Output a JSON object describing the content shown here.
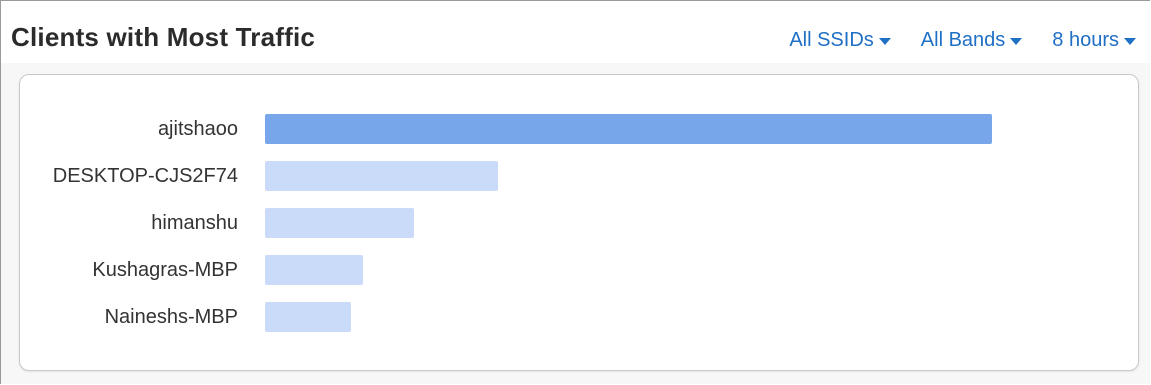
{
  "header": {
    "title": "Clients with Most Traffic",
    "filters": [
      {
        "label": "All SSIDs"
      },
      {
        "label": "All Bands"
      },
      {
        "label": "8 hours"
      }
    ]
  },
  "colors": {
    "accent": "#1f6fc5",
    "bar_top": "#78a6ea",
    "bar_other": "#c9dbf8"
  },
  "chart_data": {
    "type": "bar",
    "orientation": "horizontal",
    "categories": [
      "ajitshaoo",
      "DESKTOP-CJS2F74",
      "himanshu",
      "Kushagras-MBP",
      "Naineshs-MBP"
    ],
    "values": [
      1.0,
      0.32,
      0.205,
      0.135,
      0.118
    ]
  }
}
